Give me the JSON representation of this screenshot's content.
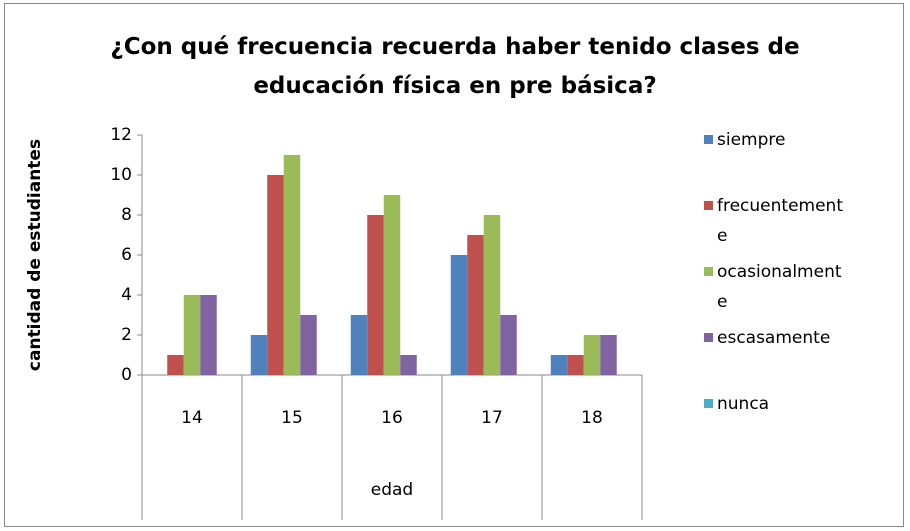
{
  "chart_data": {
    "type": "bar",
    "title": "¿Con qué frecuencia recuerda haber tenido clases de educación física en pre básica?",
    "x_label": "edad",
    "y_label": "cantidad de estudiantes",
    "categories": [
      "14",
      "15",
      "16",
      "17",
      "18"
    ],
    "series": [
      {
        "name": "siempre",
        "color": "#4f81bd",
        "values": [
          0,
          2,
          3,
          6,
          1
        ]
      },
      {
        "name": "frecuentemente",
        "color": "#c0504d",
        "values": [
          1,
          10,
          8,
          7,
          1
        ]
      },
      {
        "name": "ocasionalmente",
        "color": "#9bbb59",
        "values": [
          4,
          11,
          9,
          8,
          2
        ]
      },
      {
        "name": "escasamente",
        "color": "#8064a2",
        "values": [
          4,
          3,
          1,
          3,
          2
        ]
      },
      {
        "name": "nunca",
        "color": "#4bacc6",
        "values": [
          0,
          0,
          0,
          0,
          0
        ]
      }
    ],
    "ylim": [
      0,
      12
    ],
    "yticks": [
      0,
      2,
      4,
      6,
      8,
      10,
      12
    ],
    "grid": false,
    "legend": "right"
  }
}
